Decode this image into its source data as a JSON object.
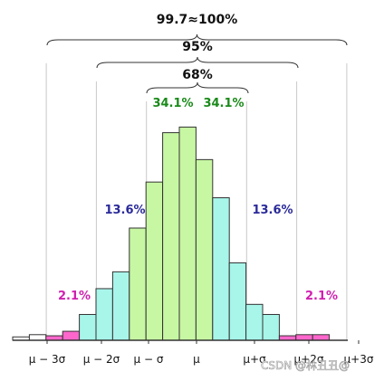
{
  "chart_data": {
    "type": "bar",
    "title": "",
    "xlabel": "",
    "ylabel": "",
    "tick_labels": [
      "μ − 3σ",
      "μ − 2σ",
      "μ − σ",
      "μ",
      "μ+σ",
      "μ+2σ",
      "μ+3σ"
    ],
    "bins": [
      {
        "value": 0.3,
        "color": "#ffffff"
      },
      {
        "value": 0.5,
        "color": "#ffffff"
      },
      {
        "value": 0.4,
        "color": "#ff66cc"
      },
      {
        "value": 0.8,
        "color": "#ff66cc"
      },
      {
        "value": 2.3,
        "color": "#a8f5ea"
      },
      {
        "value": 4.6,
        "color": "#a8f5ea"
      },
      {
        "value": 6.1,
        "color": "#a8f5ea"
      },
      {
        "value": 10.0,
        "color": "#c7f7a3"
      },
      {
        "value": 14.1,
        "color": "#c7f7a3"
      },
      {
        "value": 18.5,
        "color": "#c7f7a3"
      },
      {
        "value": 19.0,
        "color": "#c7f7a3"
      },
      {
        "value": 16.1,
        "color": "#c7f7a3"
      },
      {
        "value": 12.7,
        "color": "#a8f5ea"
      },
      {
        "value": 6.9,
        "color": "#a8f5ea"
      },
      {
        "value": 3.2,
        "color": "#a8f5ea"
      },
      {
        "value": 2.3,
        "color": "#a8f5ea"
      },
      {
        "value": 0.4,
        "color": "#ff66cc"
      },
      {
        "value": 0.5,
        "color": "#ff66cc"
      },
      {
        "value": 0.5,
        "color": "#ff66cc"
      }
    ],
    "ylim": [
      0,
      20
    ],
    "ranges": [
      {
        "label": "99.7≈100%",
        "from_sigma": -3,
        "to_sigma": 3
      },
      {
        "label": "95%",
        "from_sigma": -2,
        "to_sigma": 2
      },
      {
        "label": "68%",
        "from_sigma": -1,
        "to_sigma": 1
      }
    ],
    "percentages": [
      {
        "label": "34.1%",
        "color": "#1a8a1a",
        "region": "μ − σ to μ"
      },
      {
        "label": "34.1%",
        "color": "#1a8a1a",
        "region": "μ to μ+σ"
      },
      {
        "label": "13.6%",
        "color": "#2a2a9a",
        "region": "μ − 2σ to μ − σ"
      },
      {
        "label": "13.6%",
        "color": "#2a2a9a",
        "region": "μ+σ to μ+2σ"
      },
      {
        "label": "2.1%",
        "color": "#d020b0",
        "region": "μ − 3σ to μ − 2σ"
      },
      {
        "label": "2.1%",
        "color": "#d020b0",
        "region": "μ+2σ to μ+3σ"
      }
    ],
    "grid": false,
    "legend": "none"
  },
  "watermark": "CSDN @林丑丑@"
}
